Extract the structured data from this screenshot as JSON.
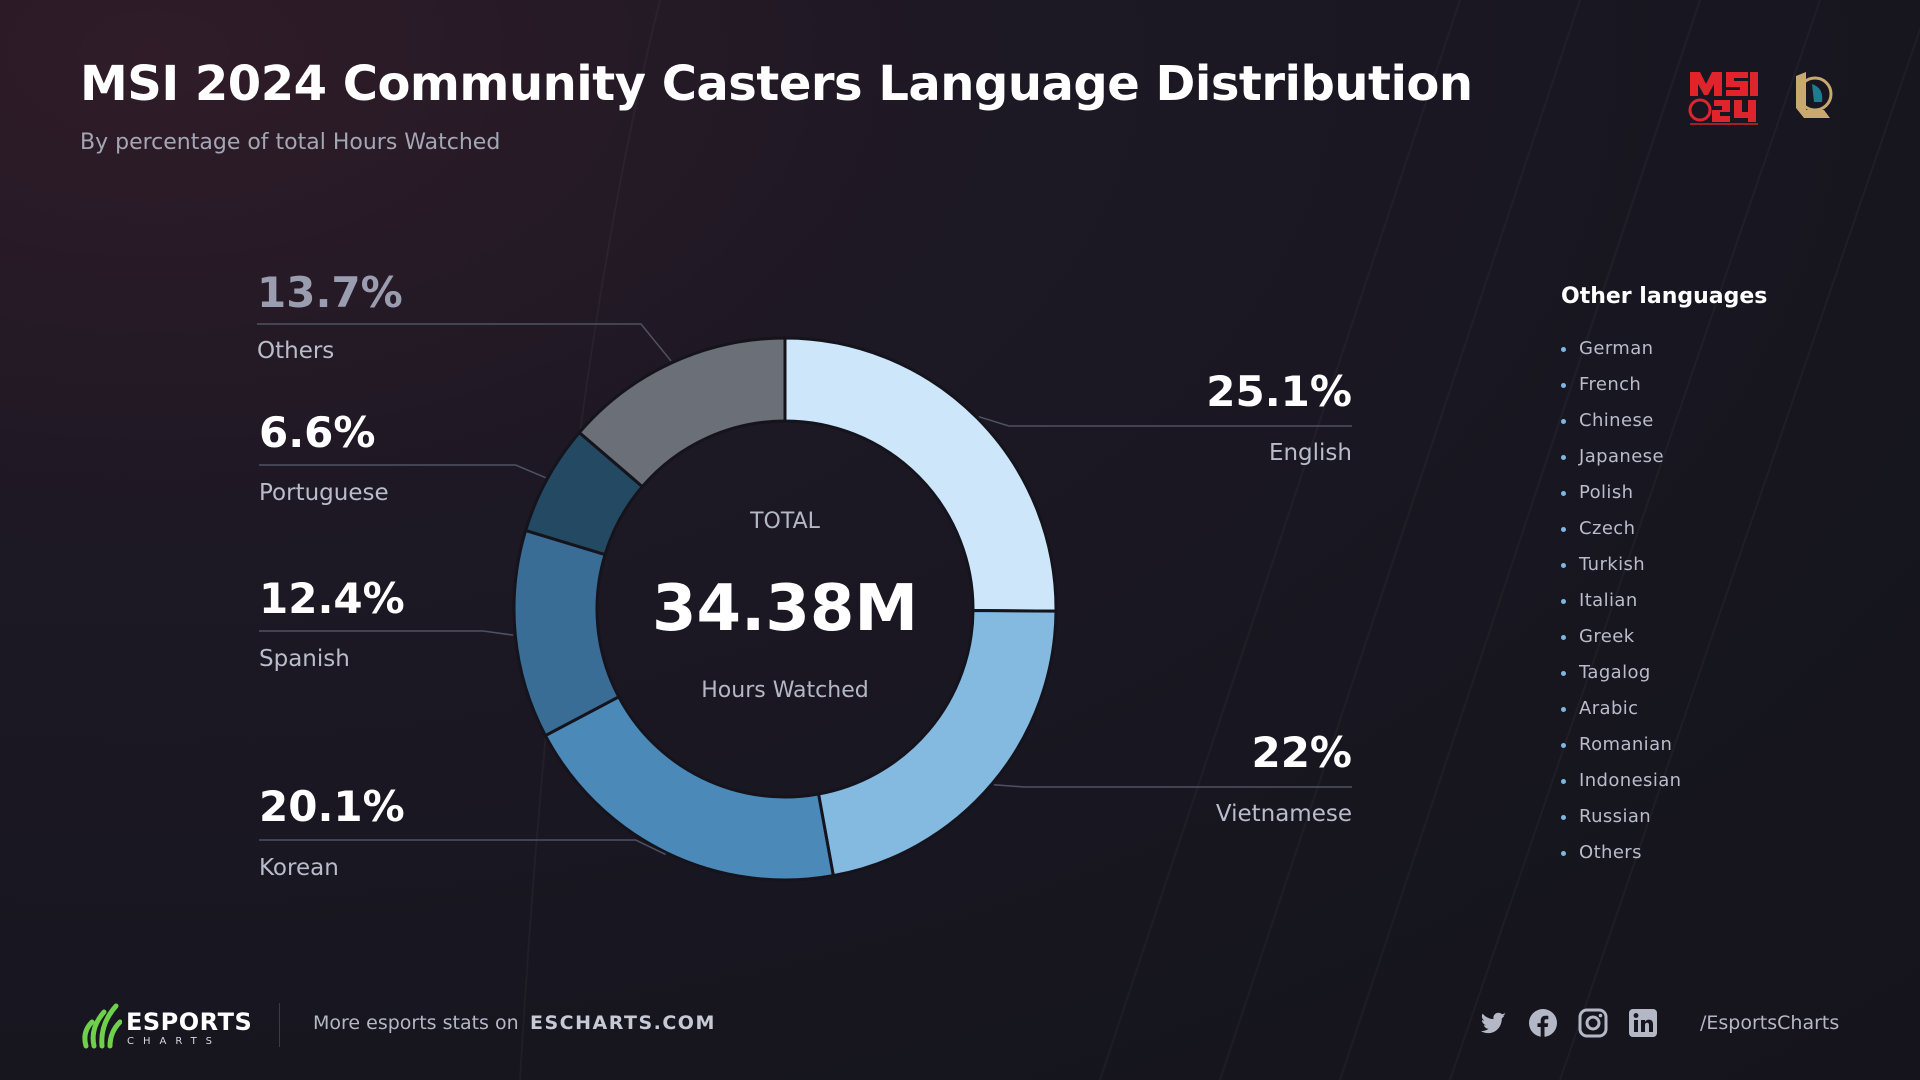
{
  "title": "MSI 2024 Community Casters Language Distribution",
  "subtitle": "By percentage of total Hours Watched",
  "logos": {
    "event": "MSI 24",
    "game": "League of Legends"
  },
  "center": {
    "total_label": "TOTAL",
    "value": "34.38M",
    "unit": "Hours Watched"
  },
  "chart_data": {
    "type": "pie",
    "donut": true,
    "title": "MSI 2024 Community Casters Language Distribution",
    "subtitle": "By percentage of total Hours Watched",
    "unit": "%",
    "total_hours_watched": "34.38M",
    "slices": [
      {
        "label": "English",
        "value": 25.1,
        "display": "25.1%",
        "color": "#cde6f9"
      },
      {
        "label": "Vietnamese",
        "value": 22,
        "display": "22%",
        "color": "#84b9e0"
      },
      {
        "label": "Korean",
        "value": 20.1,
        "display": "20.1%",
        "color": "#4a89b8"
      },
      {
        "label": "Spanish",
        "value": 12.4,
        "display": "12.4%",
        "color": "#396d95"
      },
      {
        "label": "Portuguese",
        "value": 6.6,
        "display": "6.6%",
        "color": "#244963"
      },
      {
        "label": "Others",
        "value": 13.7,
        "display": "13.7%",
        "color": "#6b6f78"
      }
    ]
  },
  "other_languages": {
    "title": "Other languages",
    "items": [
      "German",
      "French",
      "Chinese",
      "Japanese",
      "Polish",
      "Czech",
      "Turkish",
      "Italian",
      "Greek",
      "Tagalog",
      "Arabic",
      "Romanian",
      "Indonesian",
      "Russian",
      "Others"
    ]
  },
  "footer": {
    "brand_name": "ESPORTS",
    "brand_sub": "CHARTS",
    "more_text": "More esports stats on",
    "site": "ESCHARTS.COM",
    "handle": "/EsportsCharts",
    "socials": [
      "twitter-icon",
      "facebook-icon",
      "instagram-icon",
      "linkedin-icon"
    ]
  },
  "colors": {
    "accent": "#7db8e2",
    "brand_green": "#6fd04a",
    "msi_red": "#e0242b",
    "lol_gold": "#c8aa6e"
  }
}
